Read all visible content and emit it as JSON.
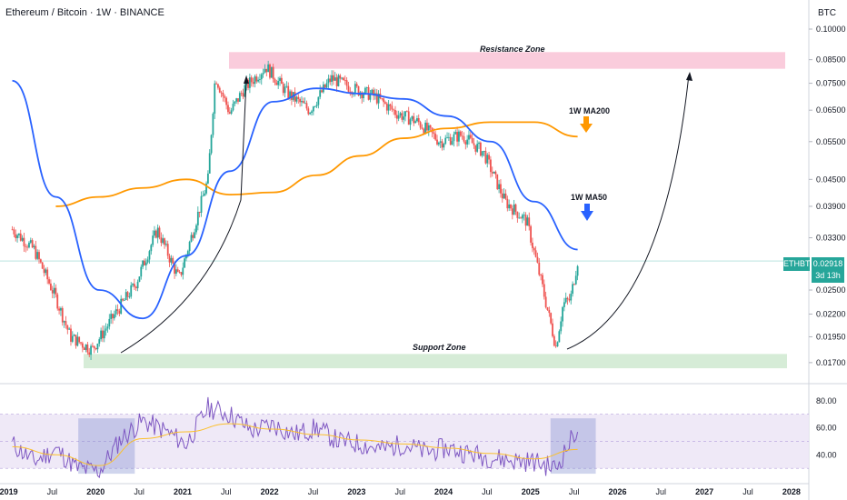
{
  "header": {
    "title": "Ethereum / Bitcoin · 1W · BINANCE",
    "currency": "BTC"
  },
  "price_box": {
    "symbol": "ETHBTC",
    "price": "0.02918",
    "countdown": "3d 13h"
  },
  "annotations": {
    "resistance": "Resistance Zone",
    "support": "Support Zone",
    "ma200": "1W MA200",
    "ma50": "1W MA50"
  },
  "colors": {
    "up": "#26a69a",
    "down": "#ef5350",
    "ma50": "#2962ff",
    "ma200": "#ff9800",
    "resistance": "#f8bbd0",
    "support": "#c8e6c9",
    "rsi": "#7e57c2",
    "rsi_ma": "#fbc02d",
    "rsi_band": "#ede7f6"
  },
  "chart_data": [
    {
      "type": "line",
      "title": "Ethereum / Bitcoin · 1W · BINANCE",
      "log_scale": true,
      "x_ticks": [
        "2019",
        "Jul",
        "2020",
        "Jul",
        "2021",
        "Jul",
        "2022",
        "Jul",
        "2023",
        "Jul",
        "2024",
        "Jul",
        "2025",
        "Jul",
        "2026",
        "Jul",
        "2027",
        "Jul",
        "2028"
      ],
      "y_ticks": [
        "0.10000",
        "0.08500",
        "0.07500",
        "0.06500",
        "0.05500",
        "0.04500",
        "0.03900",
        "0.03300",
        "0.02500",
        "0.02200",
        "0.01950",
        "0.01700"
      ],
      "ylim": [
        0.0155,
        0.107
      ],
      "series": [
        {
          "name": "ETHBTC",
          "x": [
            "2019-01",
            "2019-04",
            "2019-07",
            "2019-09",
            "2019-12",
            "2020-03",
            "2020-06",
            "2020-09",
            "2020-12",
            "2021-02",
            "2021-04",
            "2021-05",
            "2021-07",
            "2021-09",
            "2021-12",
            "2022-03",
            "2022-06",
            "2022-09",
            "2022-12",
            "2023-03",
            "2023-06",
            "2023-09",
            "2023-12",
            "2024-03",
            "2024-06",
            "2024-09",
            "2024-12",
            "2025-02",
            "2025-04",
            "2025-05",
            "2025-06",
            "2025-07"
          ],
          "values": [
            0.0345,
            0.031,
            0.024,
            0.0195,
            0.0182,
            0.0218,
            0.0258,
            0.0345,
            0.0265,
            0.0345,
            0.045,
            0.078,
            0.064,
            0.073,
            0.082,
            0.071,
            0.065,
            0.077,
            0.073,
            0.07,
            0.064,
            0.061,
            0.055,
            0.057,
            0.052,
            0.04,
            0.036,
            0.026,
            0.0185,
            0.0232,
            0.0238,
            0.02918
          ]
        },
        {
          "name": "1W MA50",
          "x": [
            "2019-01",
            "2019-07",
            "2020-01",
            "2020-07",
            "2021-01",
            "2021-07",
            "2022-01",
            "2022-07",
            "2023-01",
            "2023-07",
            "2024-01",
            "2024-07",
            "2025-01",
            "2025-07"
          ],
          "values": [
            0.076,
            0.041,
            0.025,
            0.0215,
            0.03,
            0.047,
            0.068,
            0.073,
            0.071,
            0.069,
            0.063,
            0.055,
            0.04,
            0.031
          ]
        },
        {
          "name": "1W MA200",
          "x": [
            "2019-07",
            "2020-01",
            "2020-07",
            "2021-01",
            "2021-07",
            "2022-01",
            "2022-07",
            "2023-01",
            "2023-07",
            "2024-01",
            "2024-07",
            "2025-01",
            "2025-07"
          ],
          "values": [
            0.039,
            0.041,
            0.043,
            0.045,
            0.0415,
            0.042,
            0.046,
            0.051,
            0.056,
            0.059,
            0.061,
            0.061,
            0.0565
          ]
        }
      ],
      "zones": [
        {
          "name": "Resistance Zone",
          "range": [
            0.081,
            0.0885
          ]
        },
        {
          "name": "Support Zone",
          "range": [
            0.0165,
            0.0178
          ]
        }
      ],
      "last_price": 0.02918
    },
    {
      "type": "line",
      "y_ticks": [
        "80.00",
        "60.00",
        "40.00"
      ],
      "ylim": [
        20,
        90
      ],
      "band": [
        30,
        70
      ],
      "series": [
        {
          "name": "RSI",
          "x": [
            "2019-01",
            "2019-04",
            "2019-07",
            "2019-10",
            "2020-01",
            "2020-04",
            "2020-07",
            "2020-10",
            "2021-01",
            "2021-04",
            "2021-07",
            "2021-10",
            "2022-01",
            "2022-04",
            "2022-07",
            "2022-10",
            "2023-01",
            "2023-04",
            "2023-07",
            "2023-10",
            "2024-01",
            "2024-04",
            "2024-07",
            "2024-10",
            "2025-01",
            "2025-04",
            "2025-07"
          ],
          "values": [
            48,
            35,
            44,
            30,
            28,
            52,
            65,
            58,
            48,
            75,
            70,
            58,
            62,
            55,
            60,
            50,
            48,
            44,
            48,
            42,
            45,
            41,
            38,
            36,
            35,
            30,
            60
          ]
        },
        {
          "name": "RSI MA",
          "x": [
            "2019-01",
            "2019-07",
            "2020-01",
            "2020-07",
            "2021-01",
            "2021-07",
            "2022-01",
            "2022-07",
            "2023-01",
            "2023-07",
            "2024-01",
            "2024-07",
            "2025-01",
            "2025-07"
          ],
          "values": [
            46,
            40,
            32,
            52,
            57,
            63,
            59,
            55,
            51,
            48,
            45,
            41,
            37,
            44
          ]
        }
      ]
    }
  ]
}
